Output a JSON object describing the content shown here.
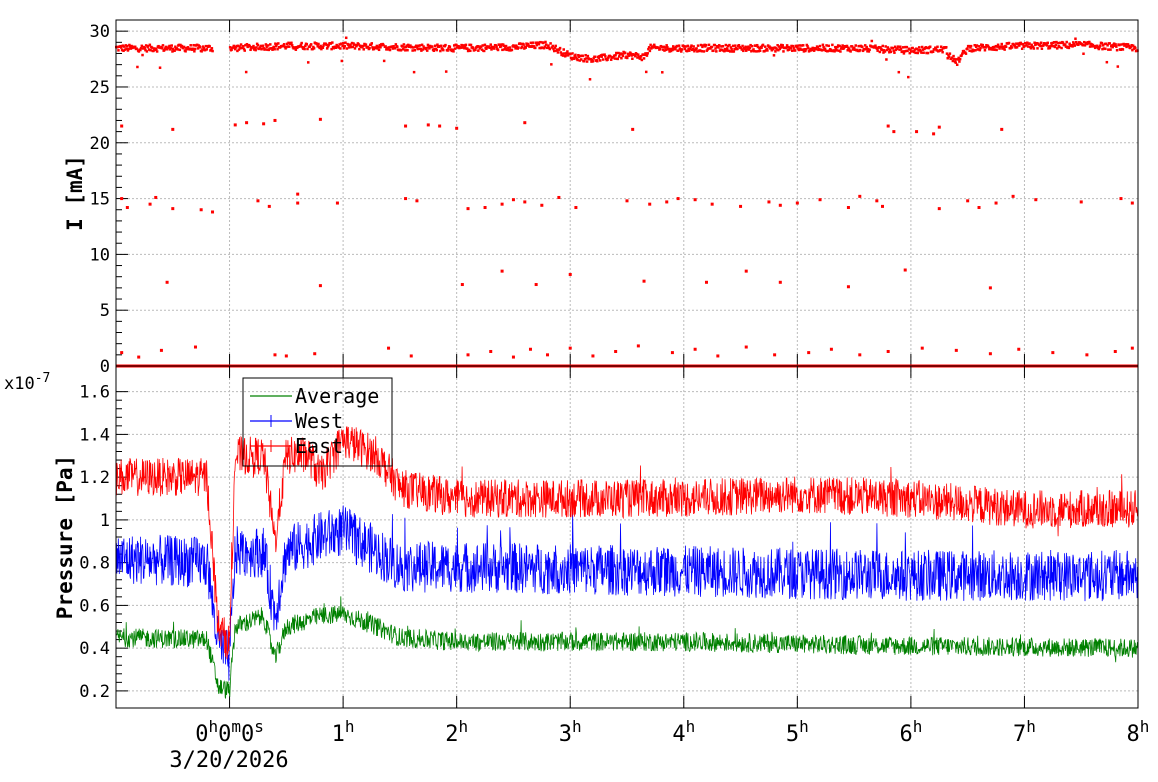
{
  "chart_data": [
    {
      "type": "scatter",
      "title": "",
      "ylabel": "I [mA]",
      "xlim": [
        -1,
        8
      ],
      "ylim": [
        0,
        31
      ],
      "y_ticks": [
        "0",
        "5",
        "10",
        "15",
        "20",
        "25",
        "30"
      ],
      "y_tick_values": [
        0,
        5,
        10,
        15,
        20,
        25,
        30
      ],
      "grid": true,
      "series": [
        {
          "color": "#ff0000",
          "baseline_points": [
            [
              -1.0,
              28.5
            ],
            [
              -0.6,
              28.5
            ],
            [
              -0.3,
              28.5
            ],
            [
              0.0,
              28.5
            ],
            [
              0.5,
              28.7
            ],
            [
              1.0,
              28.7
            ],
            [
              1.5,
              28.6
            ],
            [
              2.0,
              28.5
            ],
            [
              2.5,
              28.6
            ],
            [
              2.8,
              28.8
            ],
            [
              3.0,
              27.8
            ],
            [
              3.2,
              27.5
            ],
            [
              3.5,
              27.9
            ],
            [
              3.65,
              27.7
            ],
            [
              3.7,
              28.5
            ],
            [
              4.0,
              28.5
            ],
            [
              4.5,
              28.5
            ],
            [
              5.0,
              28.5
            ],
            [
              5.5,
              28.5
            ],
            [
              6.0,
              28.3
            ],
            [
              6.3,
              28.4
            ],
            [
              6.4,
              27.2
            ],
            [
              6.5,
              28.5
            ],
            [
              7.0,
              28.7
            ],
            [
              7.5,
              28.8
            ],
            [
              8.0,
              28.5
            ]
          ],
          "scatter_points": [
            [
              -0.95,
              21.5
            ],
            [
              -0.5,
              21.2
            ],
            [
              0.05,
              21.6
            ],
            [
              0.15,
              21.8
            ],
            [
              0.3,
              21.7
            ],
            [
              0.4,
              22.0
            ],
            [
              0.8,
              22.1
            ],
            [
              1.55,
              21.5
            ],
            [
              1.75,
              21.6
            ],
            [
              1.85,
              21.5
            ],
            [
              2.0,
              21.3
            ],
            [
              2.6,
              21.8
            ],
            [
              3.55,
              21.2
            ],
            [
              5.8,
              21.5
            ],
            [
              5.85,
              21.0
            ],
            [
              6.05,
              21.0
            ],
            [
              6.2,
              20.8
            ],
            [
              6.25,
              21.4
            ],
            [
              6.8,
              21.2
            ],
            [
              -0.95,
              15.0
            ],
            [
              -0.9,
              14.2
            ],
            [
              -0.7,
              14.5
            ],
            [
              -0.65,
              15.1
            ],
            [
              -0.5,
              14.1
            ],
            [
              -0.25,
              14.0
            ],
            [
              -0.15,
              13.8
            ],
            [
              0.25,
              14.8
            ],
            [
              0.35,
              14.3
            ],
            [
              0.6,
              15.4
            ],
            [
              0.6,
              14.6
            ],
            [
              0.95,
              14.6
            ],
            [
              1.55,
              15.0
            ],
            [
              1.65,
              14.8
            ],
            [
              2.1,
              14.1
            ],
            [
              2.25,
              14.2
            ],
            [
              2.4,
              14.5
            ],
            [
              2.5,
              14.9
            ],
            [
              2.6,
              14.7
            ],
            [
              2.75,
              14.4
            ],
            [
              2.9,
              15.1
            ],
            [
              3.05,
              14.2
            ],
            [
              3.5,
              14.8
            ],
            [
              3.7,
              14.5
            ],
            [
              3.85,
              14.7
            ],
            [
              3.95,
              15.0
            ],
            [
              4.1,
              14.9
            ],
            [
              4.25,
              14.5
            ],
            [
              4.5,
              14.3
            ],
            [
              4.75,
              14.7
            ],
            [
              4.85,
              14.4
            ],
            [
              5.0,
              14.6
            ],
            [
              5.2,
              14.9
            ],
            [
              5.45,
              14.2
            ],
            [
              5.55,
              15.2
            ],
            [
              5.7,
              14.8
            ],
            [
              5.75,
              14.3
            ],
            [
              6.25,
              14.1
            ],
            [
              6.5,
              14.8
            ],
            [
              6.6,
              14.2
            ],
            [
              6.75,
              14.6
            ],
            [
              6.9,
              15.2
            ],
            [
              7.1,
              14.9
            ],
            [
              7.5,
              14.7
            ],
            [
              7.85,
              15.0
            ],
            [
              7.95,
              14.6
            ],
            [
              -0.55,
              7.5
            ],
            [
              0.8,
              7.2
            ],
            [
              2.05,
              7.3
            ],
            [
              2.4,
              8.5
            ],
            [
              2.7,
              7.3
            ],
            [
              3.0,
              8.2
            ],
            [
              3.65,
              7.6
            ],
            [
              4.2,
              7.5
            ],
            [
              4.55,
              8.5
            ],
            [
              4.85,
              7.5
            ],
            [
              5.45,
              7.1
            ],
            [
              5.95,
              8.6
            ],
            [
              6.7,
              7.0
            ],
            [
              -0.95,
              1.2
            ],
            [
              -0.8,
              0.8
            ],
            [
              -0.6,
              1.4
            ],
            [
              -0.3,
              1.7
            ],
            [
              0.4,
              1.0
            ],
            [
              0.5,
              0.9
            ],
            [
              0.75,
              1.1
            ],
            [
              1.4,
              1.6
            ],
            [
              1.6,
              0.9
            ],
            [
              2.1,
              1.0
            ],
            [
              2.3,
              1.3
            ],
            [
              2.5,
              0.8
            ],
            [
              2.65,
              1.5
            ],
            [
              2.8,
              1.0
            ],
            [
              3.0,
              1.6
            ],
            [
              3.2,
              0.9
            ],
            [
              3.4,
              1.3
            ],
            [
              3.6,
              1.8
            ],
            [
              3.9,
              1.2
            ],
            [
              4.1,
              1.5
            ],
            [
              4.3,
              0.9
            ],
            [
              4.55,
              1.7
            ],
            [
              4.8,
              1.0
            ],
            [
              5.1,
              1.2
            ],
            [
              5.3,
              1.5
            ],
            [
              5.55,
              1.0
            ],
            [
              5.8,
              1.3
            ],
            [
              6.1,
              1.6
            ],
            [
              6.4,
              1.4
            ],
            [
              6.7,
              1.1
            ],
            [
              6.95,
              1.5
            ],
            [
              7.25,
              1.2
            ],
            [
              7.55,
              1.0
            ],
            [
              7.8,
              1.3
            ],
            [
              7.95,
              1.6
            ]
          ]
        }
      ]
    },
    {
      "type": "line",
      "title": "",
      "ylabel": "Pressure [Pa]",
      "exponent_label": "x10",
      "exponent_power": "-7",
      "xlim": [
        -1,
        8
      ],
      "ylim": [
        0.12,
        1.72
      ],
      "y_ticks": [
        "0.2",
        "0.4",
        "0.6",
        "0.8",
        "1",
        "1.2",
        "1.4",
        "1.6"
      ],
      "y_tick_values": [
        0.2,
        0.4,
        0.6,
        0.8,
        1.0,
        1.2,
        1.4,
        1.6
      ],
      "grid": true,
      "legend_position": "top-left",
      "series": [
        {
          "name": "East",
          "color": "#ff0000",
          "center": [
            [
              -1.0,
              1.2
            ],
            [
              -0.2,
              1.2
            ],
            [
              -0.1,
              0.5
            ],
            [
              0.0,
              0.42
            ],
            [
              0.05,
              1.3
            ],
            [
              0.3,
              1.3
            ],
            [
              0.4,
              0.9
            ],
            [
              0.5,
              1.3
            ],
            [
              0.7,
              1.3
            ],
            [
              0.8,
              1.2
            ],
            [
              1.0,
              1.38
            ],
            [
              1.3,
              1.3
            ],
            [
              1.5,
              1.15
            ],
            [
              2.0,
              1.1
            ],
            [
              3.0,
              1.1
            ],
            [
              4.0,
              1.1
            ],
            [
              5.0,
              1.12
            ],
            [
              6.0,
              1.1
            ],
            [
              7.0,
              1.05
            ],
            [
              8.0,
              1.05
            ]
          ],
          "noise": 0.09
        },
        {
          "name": "West",
          "color": "#0000ff",
          "center": [
            [
              -1.0,
              0.82
            ],
            [
              -0.2,
              0.8
            ],
            [
              -0.1,
              0.42
            ],
            [
              0.0,
              0.35
            ],
            [
              0.05,
              0.85
            ],
            [
              0.3,
              0.85
            ],
            [
              0.4,
              0.55
            ],
            [
              0.5,
              0.85
            ],
            [
              0.8,
              0.92
            ],
            [
              1.0,
              0.95
            ],
            [
              1.3,
              0.85
            ],
            [
              1.5,
              0.78
            ],
            [
              2.0,
              0.78
            ],
            [
              4.0,
              0.76
            ],
            [
              6.0,
              0.74
            ],
            [
              8.0,
              0.74
            ]
          ],
          "noise": 0.12
        },
        {
          "name": "Average",
          "color": "#008000",
          "center": [
            [
              -1.0,
              0.45
            ],
            [
              -0.2,
              0.44
            ],
            [
              -0.1,
              0.22
            ],
            [
              0.0,
              0.2
            ],
            [
              0.05,
              0.5
            ],
            [
              0.3,
              0.55
            ],
            [
              0.4,
              0.35
            ],
            [
              0.5,
              0.5
            ],
            [
              0.8,
              0.55
            ],
            [
              1.0,
              0.56
            ],
            [
              1.3,
              0.5
            ],
            [
              1.5,
              0.45
            ],
            [
              2.0,
              0.43
            ],
            [
              4.0,
              0.43
            ],
            [
              6.0,
              0.41
            ],
            [
              8.0,
              0.4
            ]
          ],
          "noise": 0.045
        }
      ]
    }
  ],
  "x_axis": {
    "tick_values": [
      0,
      1,
      2,
      3,
      4,
      5,
      6,
      7,
      8
    ],
    "tick_labels": [
      {
        "num": "0",
        "sup": "h",
        "extra": "0",
        "sup2": "m",
        "extra2": "0",
        "sup3": "s"
      },
      {
        "num": "1",
        "sup": "h"
      },
      {
        "num": "2",
        "sup": "h"
      },
      {
        "num": "3",
        "sup": "h"
      },
      {
        "num": "4",
        "sup": "h"
      },
      {
        "num": "5",
        "sup": "h"
      },
      {
        "num": "6",
        "sup": "h"
      },
      {
        "num": "7",
        "sup": "h"
      },
      {
        "num": "8",
        "sup": "h"
      }
    ],
    "date_label": "3/20/2026"
  },
  "legend": {
    "entries": [
      {
        "label": "Average",
        "color": "#008000"
      },
      {
        "label": "West",
        "color": "#0000ff"
      },
      {
        "label": "East",
        "color": "#ff0000"
      }
    ]
  }
}
